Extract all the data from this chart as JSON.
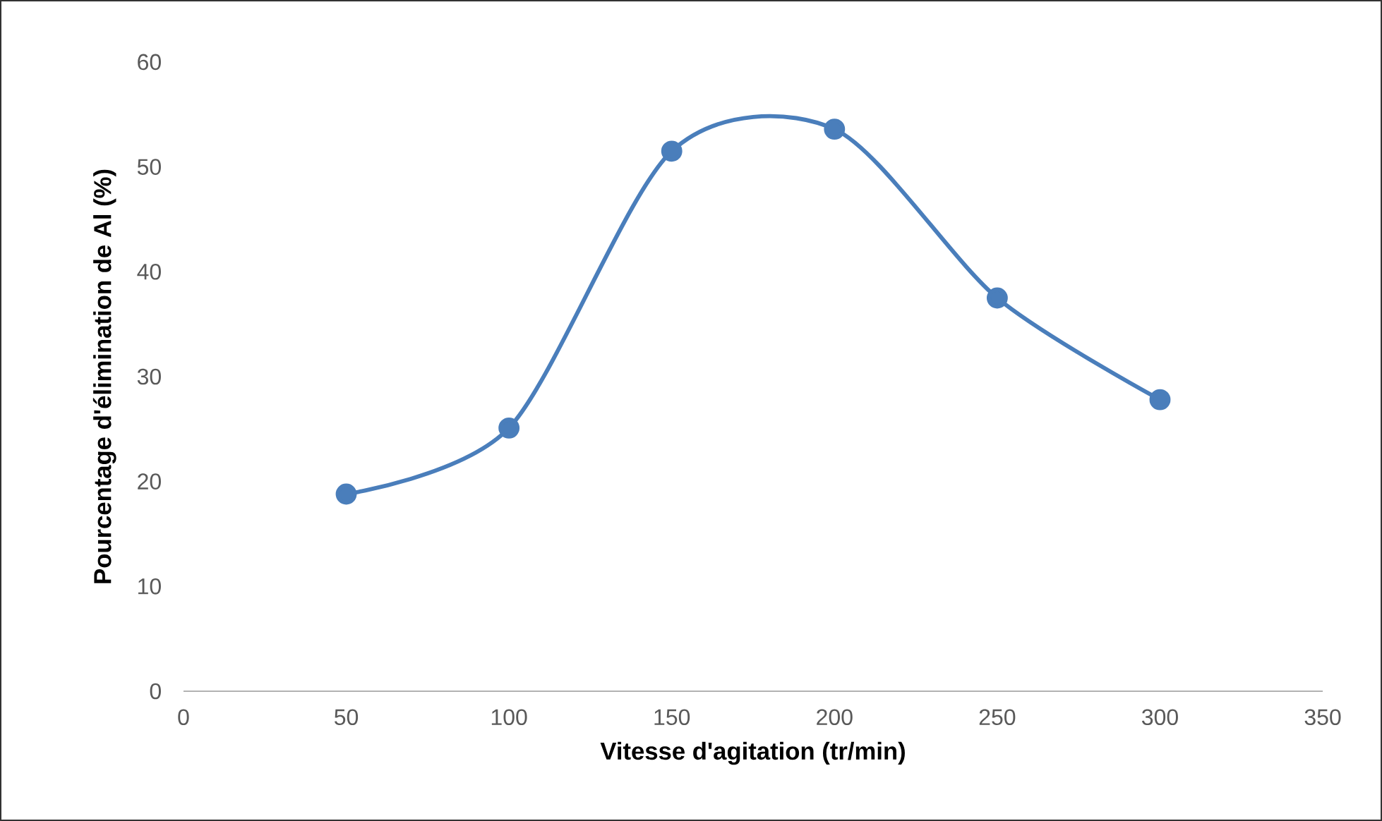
{
  "chart_data": {
    "type": "line",
    "xlabel": "Vitesse d'agitation (tr/min)",
    "ylabel": "Pourcentage d'élimination de Al (%)",
    "x": [
      50,
      100,
      150,
      200,
      250,
      300
    ],
    "values": [
      18.8,
      25.1,
      51.5,
      53.6,
      37.5,
      27.8
    ],
    "color": "#4a7ebb",
    "marker": "circle",
    "line_style": "solid",
    "xlim": [
      0,
      350
    ],
    "ylim": [
      0,
      60
    ],
    "xticks": [
      0,
      50,
      100,
      150,
      200,
      250,
      300,
      350
    ],
    "yticks": [
      0,
      10,
      20,
      30,
      40,
      50,
      60
    ]
  }
}
